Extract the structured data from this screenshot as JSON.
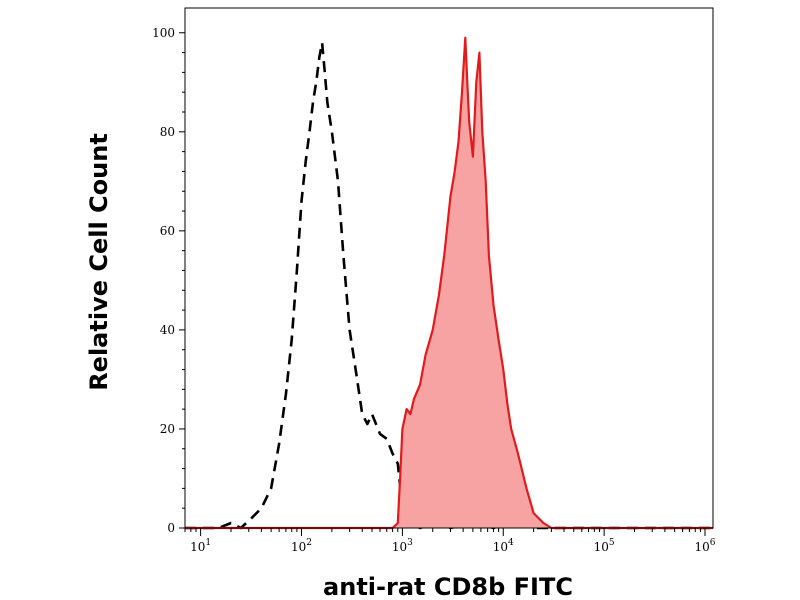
{
  "chart_data": {
    "type": "area",
    "title": "",
    "xlabel": "anti-rat CD8b FITC",
    "ylabel": "Relative Cell Count",
    "xscale": "log",
    "xlim": [
      7,
      1200000
    ],
    "ylim": [
      0,
      105
    ],
    "grid": false,
    "x_ticks": [
      {
        "base": "10",
        "exp": "1",
        "value": 10
      },
      {
        "base": "10",
        "exp": "2",
        "value": 100
      },
      {
        "base": "10",
        "exp": "3",
        "value": 1000
      },
      {
        "base": "10",
        "exp": "4",
        "value": 10000
      },
      {
        "base": "10",
        "exp": "5",
        "value": 100000
      },
      {
        "base": "10",
        "exp": "6",
        "value": 1000000
      }
    ],
    "y_ticks": [
      {
        "label": "0",
        "value": 0
      },
      {
        "label": "20",
        "value": 20
      },
      {
        "label": "40",
        "value": 40
      },
      {
        "label": "60",
        "value": 60
      },
      {
        "label": "80",
        "value": 80
      },
      {
        "label": "100",
        "value": 100
      }
    ],
    "series": [
      {
        "style": "dashed-line",
        "color": "#000000",
        "x": [
          7,
          15,
          20,
          25,
          32,
          40,
          50,
          60,
          70,
          80,
          90,
          100,
          110,
          120,
          130,
          140,
          150,
          160,
          170,
          180,
          200,
          230,
          260,
          300,
          350,
          400,
          450,
          500,
          600,
          700,
          800,
          900,
          1000,
          1100,
          1200,
          1500,
          2000,
          3000,
          5000,
          8000,
          12000,
          20000,
          50000,
          1200000
        ],
        "y": [
          0,
          0,
          1,
          0,
          2,
          4,
          8,
          17,
          27,
          38,
          52,
          66,
          74,
          80,
          86,
          90,
          95,
          98,
          92,
          86,
          80,
          70,
          55,
          40,
          31,
          23,
          21,
          23,
          19,
          18,
          15,
          13,
          4,
          1,
          1,
          0,
          1,
          0,
          1,
          0,
          1,
          0,
          0,
          0
        ]
      },
      {
        "style": "filled-area",
        "color": "#e31a1c",
        "fill": "#f7a3a3",
        "x": [
          7,
          800,
          900,
          950,
          1000,
          1100,
          1200,
          1300,
          1500,
          1700,
          2000,
          2300,
          2600,
          3000,
          3300,
          3600,
          3900,
          4200,
          4400,
          4600,
          5000,
          5400,
          5800,
          6200,
          6700,
          7200,
          8000,
          9000,
          10000,
          11000,
          12000,
          14000,
          17000,
          20000,
          25000,
          30000,
          40000,
          60000,
          100000,
          1200000
        ],
        "y": [
          0,
          0,
          1,
          10,
          20,
          24,
          23,
          26,
          29,
          35,
          40,
          47,
          55,
          67,
          72,
          78,
          88,
          99,
          90,
          82,
          75,
          90,
          96,
          80,
          70,
          55,
          45,
          38,
          32,
          25,
          20,
          15,
          8,
          3,
          1,
          0,
          0,
          0,
          0,
          0
        ]
      }
    ]
  }
}
